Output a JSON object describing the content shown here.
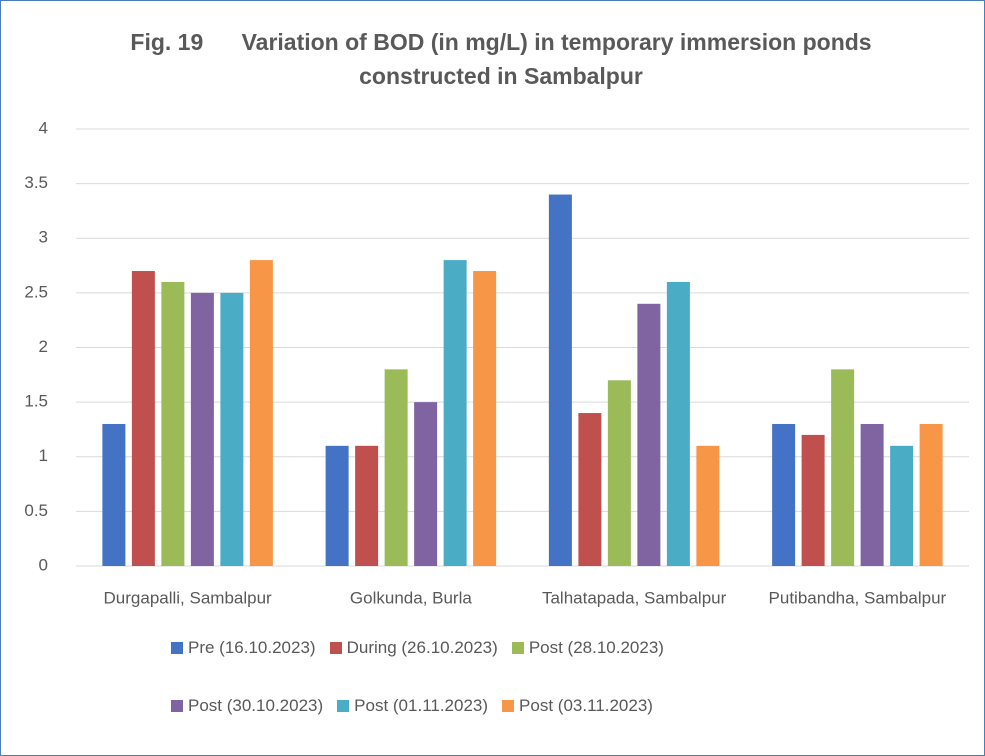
{
  "chart_data": {
    "type": "bar",
    "title": "Fig. 19      Variation of BOD (in mg/L) in temporary immersion ponds constructed in Sambalpur",
    "categories": [
      "Durgapalli, Sambalpur",
      "Golkunda, Burla",
      "Talhatapada, Sambalpur",
      "Putibandha, Sambalpur"
    ],
    "series": [
      {
        "name": "Pre (16.10.2023)",
        "color": "#4472c4",
        "values": [
          1.3,
          1.1,
          3.4,
          1.3
        ]
      },
      {
        "name": "During (26.10.2023)",
        "color": "#c0504d",
        "values": [
          2.7,
          1.1,
          1.4,
          1.2
        ]
      },
      {
        "name": "Post (28.10.2023)",
        "color": "#9bbb59",
        "values": [
          2.6,
          1.8,
          1.7,
          1.8
        ]
      },
      {
        "name": "Post (30.10.2023)",
        "color": "#8064a2",
        "values": [
          2.5,
          1.5,
          2.4,
          1.3
        ]
      },
      {
        "name": "Post (01.11.2023)",
        "color": "#4bacc6",
        "values": [
          2.5,
          2.8,
          2.6,
          1.1
        ]
      },
      {
        "name": "Post (03.11.2023)",
        "color": "#f79646",
        "values": [
          2.8,
          2.7,
          1.1,
          1.3
        ]
      }
    ],
    "ylim": [
      0,
      4
    ],
    "yticks": [
      0,
      0.5,
      1,
      1.5,
      2,
      2.5,
      3,
      3.5,
      4
    ],
    "grid": true,
    "legend": "bottom"
  }
}
